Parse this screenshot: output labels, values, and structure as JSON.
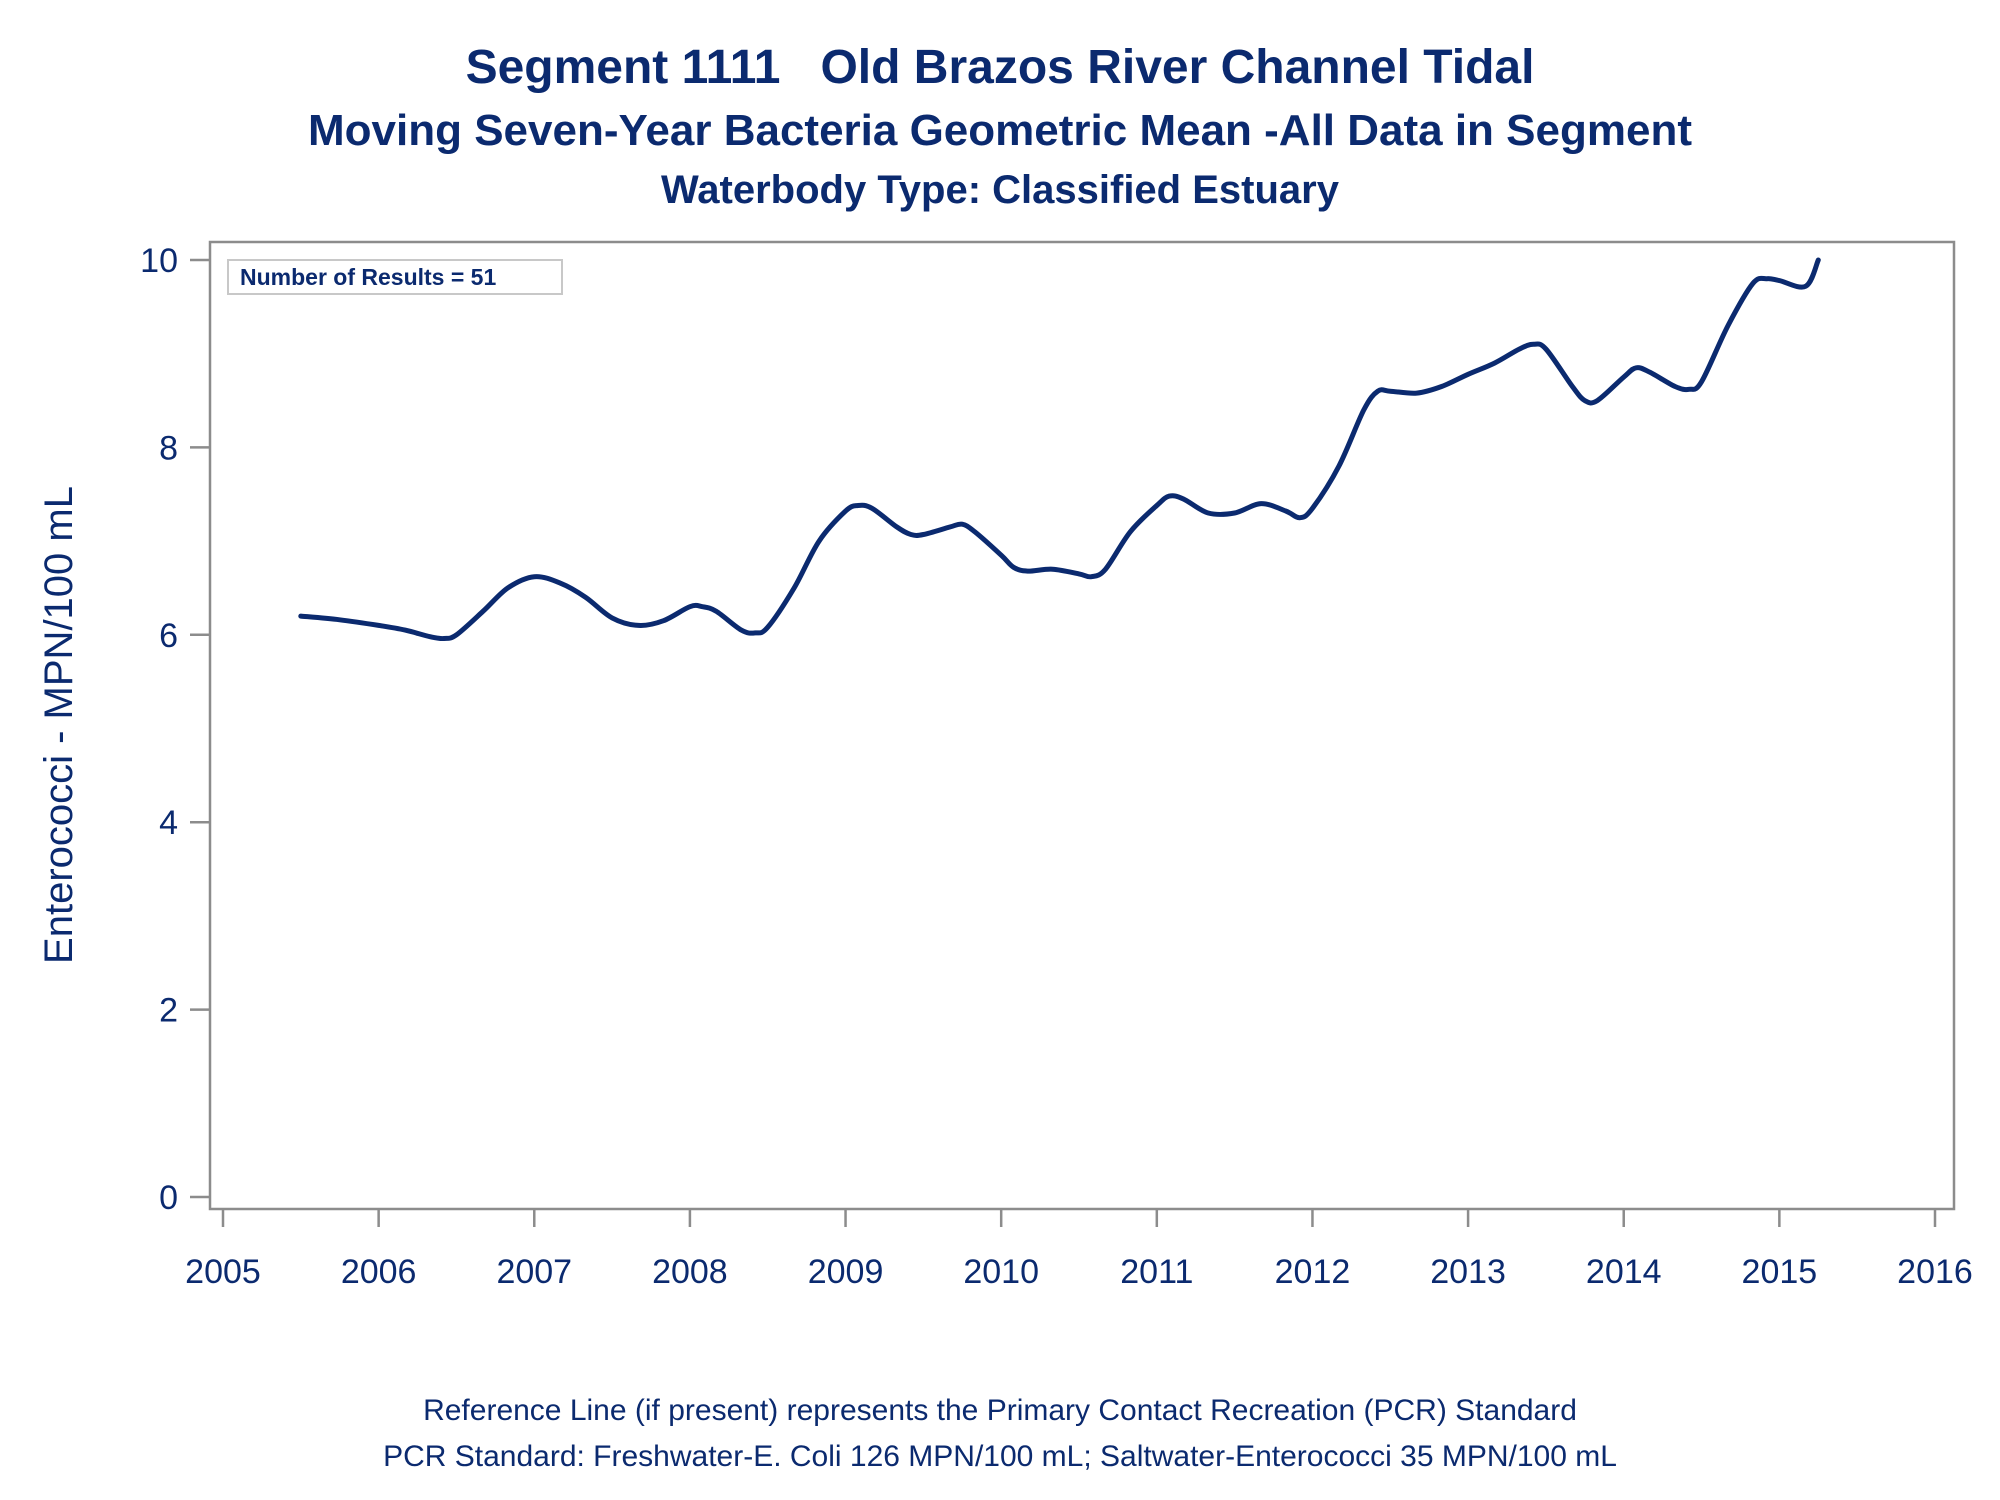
{
  "title": "Segment 1111   Old Brazos River Channel Tidal",
  "subtitle": "Moving Seven-Year Bacteria Geometric Mean -All Data in Segment",
  "subtitle2": "Waterbody Type: Classified Estuary",
  "footnotes": [
    "Reference Line (if present) represents the Primary Contact Recreation (PCR) Standard",
    "PCR Standard: Freshwater-E. Coli 126 MPN/100 mL; Saltwater-Enterococci 35 MPN/100 mL"
  ],
  "colors": {
    "line": "#0b2a6f",
    "axis": "#8c8c8c",
    "text": "#0b2a6f"
  },
  "chart_data": {
    "type": "line",
    "ylabel": "Enterococci - MPN/100 mL",
    "xlabel": "",
    "xlim": [
      2005,
      2016
    ],
    "ylim": [
      0,
      10
    ],
    "x_ticks": [
      2005,
      2006,
      2007,
      2008,
      2009,
      2010,
      2011,
      2012,
      2013,
      2014,
      2015,
      2016
    ],
    "x_tick_labels": [
      "2005",
      "2006",
      "2007",
      "2008",
      "2009",
      "2010",
      "2011",
      "2012",
      "2013",
      "2014",
      "2015",
      "2016"
    ],
    "y_ticks": [
      0,
      2,
      4,
      6,
      8,
      10
    ],
    "y_tick_labels": [
      "0",
      "2",
      "4",
      "6",
      "8",
      "10"
    ],
    "annotation": "Number of Results = 51",
    "grid": false,
    "series": [
      {
        "x": [
          2005.5,
          2005.75,
          2006.0,
          2006.17,
          2006.33,
          2006.42,
          2006.5,
          2006.67,
          2006.83,
          2007.0,
          2007.17,
          2007.33,
          2007.5,
          2007.67,
          2007.83,
          2008.0,
          2008.08,
          2008.17,
          2008.33,
          2008.42,
          2008.5,
          2008.67,
          2008.83,
          2009.0,
          2009.08,
          2009.17,
          2009.33,
          2009.42,
          2009.5,
          2009.67,
          2009.75,
          2009.83,
          2010.0,
          2010.08,
          2010.17,
          2010.33,
          2010.5,
          2010.58,
          2010.67,
          2010.83,
          2011.0,
          2011.08,
          2011.17,
          2011.33,
          2011.5,
          2011.67,
          2011.83,
          2011.92,
          2012.0,
          2012.17,
          2012.33,
          2012.42,
          2012.5,
          2012.67,
          2012.83,
          2013.0,
          2013.17,
          2013.33,
          2013.42,
          2013.5,
          2013.67,
          2013.75,
          2013.83,
          2014.0,
          2014.08,
          2014.17,
          2014.33,
          2014.42,
          2014.5,
          2014.67,
          2014.83,
          2014.92,
          2015.0,
          2015.17,
          2015.25
        ],
        "y": [
          6.2,
          6.16,
          6.1,
          6.05,
          5.98,
          5.96,
          6.0,
          6.25,
          6.5,
          6.62,
          6.55,
          6.4,
          6.18,
          6.1,
          6.15,
          6.3,
          6.3,
          6.25,
          6.05,
          6.02,
          6.08,
          6.5,
          7.0,
          7.32,
          7.38,
          7.35,
          7.15,
          7.07,
          7.07,
          7.15,
          7.18,
          7.1,
          6.85,
          6.72,
          6.68,
          6.7,
          6.65,
          6.62,
          6.7,
          7.1,
          7.38,
          7.48,
          7.45,
          7.3,
          7.3,
          7.4,
          7.32,
          7.25,
          7.35,
          7.8,
          8.4,
          8.6,
          8.6,
          8.58,
          8.65,
          8.78,
          8.9,
          9.05,
          9.1,
          9.05,
          8.65,
          8.5,
          8.5,
          8.75,
          8.85,
          8.8,
          8.65,
          8.62,
          8.7,
          9.3,
          9.75,
          9.8,
          9.78,
          9.72,
          10.0
        ]
      }
    ]
  }
}
